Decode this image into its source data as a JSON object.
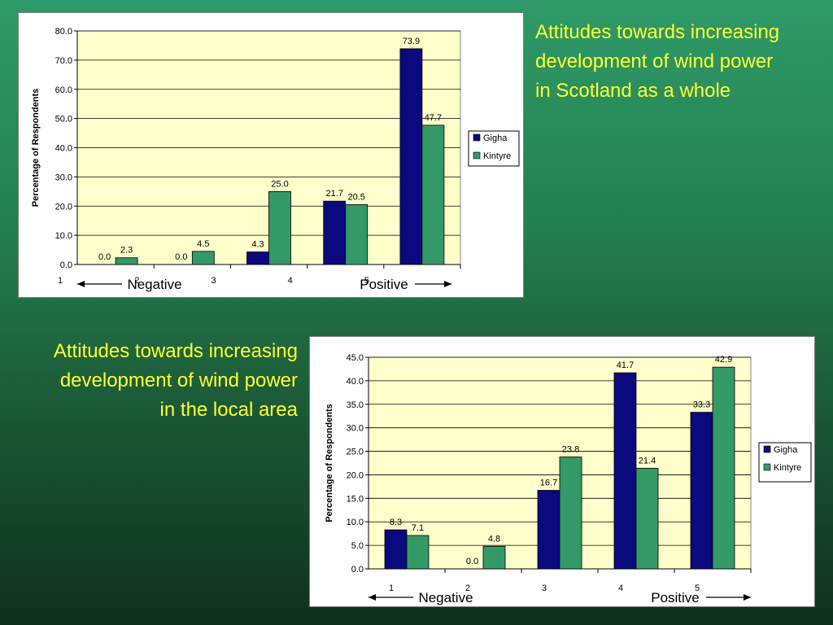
{
  "slide": {
    "caption_whole_lines": [
      "Attitudes towards increasing",
      "development of wind power",
      "in Scotland as a whole"
    ],
    "caption_local_lines": [
      "Attitudes towards increasing",
      "development of wind power",
      "in the local area"
    ]
  },
  "colors": {
    "gigha": "#0a0a7e",
    "kintyre": "#339966",
    "plot_background": "#ffffcc",
    "caption_text": "#ffff33"
  },
  "chart_data": [
    {
      "type": "bar",
      "categories": [
        "1",
        "2",
        "3",
        "4",
        "5"
      ],
      "series": [
        {
          "name": "Gigha",
          "values": [
            0.0,
            0.0,
            4.3,
            21.7,
            73.9
          ]
        },
        {
          "name": "Kintyre",
          "values": [
            2.3,
            4.5,
            25.0,
            20.5,
            47.7
          ]
        }
      ],
      "ylabel": "Percentage of Respondents",
      "ylim": [
        0,
        80
      ],
      "ytick_step": 10,
      "grid": true,
      "legend": "right",
      "scale_labels": {
        "negative": "Negative",
        "positive": "Positive"
      }
    },
    {
      "type": "bar",
      "categories": [
        "1",
        "2",
        "3",
        "4",
        "5"
      ],
      "series": [
        {
          "name": "Gigha",
          "values": [
            8.3,
            0.0,
            16.7,
            41.7,
            33.3
          ]
        },
        {
          "name": "Kintyre",
          "values": [
            7.1,
            4.8,
            23.8,
            21.4,
            42.9
          ]
        }
      ],
      "ylabel": "Percentage of Respondents",
      "ylim": [
        0,
        45
      ],
      "ytick_step": 5,
      "grid": true,
      "legend": "right",
      "scale_labels": {
        "negative": "Negative",
        "positive": "Positive"
      }
    }
  ]
}
